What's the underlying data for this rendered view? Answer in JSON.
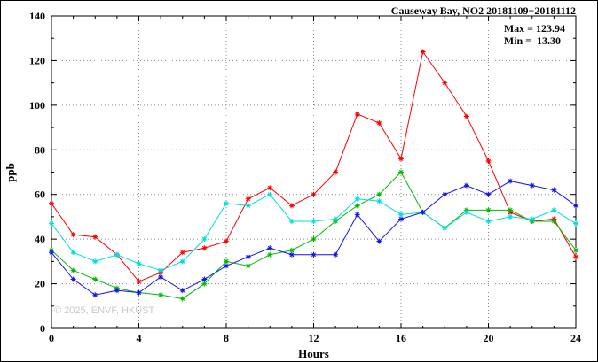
{
  "figure": {
    "title": "Causeway Bay, NO2 20181109−20181112",
    "stats": {
      "max_line": "Max = 123.94",
      "min_line": "Min =  13.30"
    },
    "xlabel": "Hours",
    "ylabel": "ppb",
    "watermark": "© 2025, ENVF, HKUST"
  },
  "chart_data": {
    "type": "line",
    "title": "Causeway Bay, NO2 20181109−20181112",
    "xlabel": "Hours",
    "ylabel": "ppb",
    "xlim": [
      0,
      24
    ],
    "ylim": [
      0,
      140
    ],
    "xtick_step": 4,
    "ytick_step": 20,
    "x_minor_step": 1,
    "y_minor_step": 10,
    "grid": true,
    "legend_position": "none",
    "marker": "asterisk",
    "stats": {
      "max": 123.94,
      "min": 13.3
    },
    "x": [
      0,
      1,
      2,
      3,
      4,
      5,
      6,
      7,
      8,
      9,
      10,
      11,
      12,
      13,
      14,
      15,
      16,
      17,
      18,
      19,
      20,
      21,
      22,
      23,
      24
    ],
    "series": [
      {
        "name": "series-red",
        "color": "#ff0000",
        "values": [
          56,
          42,
          41,
          33,
          21,
          25,
          34,
          36,
          39,
          58,
          63,
          55,
          60,
          70,
          96,
          92,
          76,
          123.94,
          110,
          95,
          75,
          52,
          48,
          49,
          32
        ]
      },
      {
        "name": "series-green",
        "color": "#00bb00",
        "values": [
          35,
          26,
          22,
          18,
          16,
          15,
          13.3,
          20,
          30,
          28,
          33,
          35,
          40,
          48,
          55,
          60,
          70,
          52,
          45,
          53,
          53,
          53,
          48,
          48,
          35
        ]
      },
      {
        "name": "series-cyan",
        "color": "#00dede",
        "values": [
          47,
          34,
          30,
          33,
          29,
          26,
          30,
          40,
          56,
          55,
          60,
          48,
          48,
          49,
          58,
          57,
          51,
          52,
          45,
          52,
          48,
          50,
          49,
          53,
          47
        ]
      },
      {
        "name": "series-blue",
        "color": "#1414f0",
        "values": [
          34,
          22,
          15,
          17,
          16,
          23,
          17,
          22,
          28,
          32,
          36,
          33,
          33,
          33,
          51,
          39,
          49,
          52,
          60,
          64,
          60,
          66,
          64,
          62,
          55
        ]
      }
    ]
  }
}
